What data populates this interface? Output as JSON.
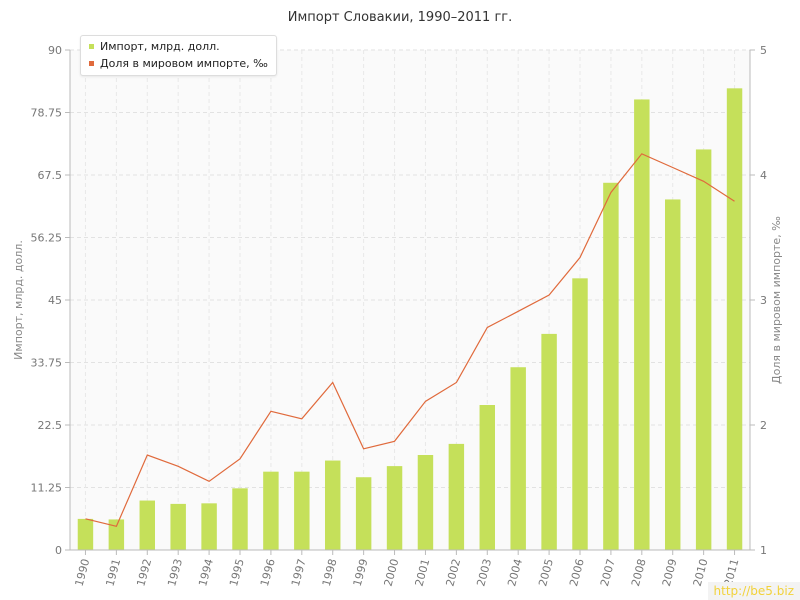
{
  "chart_data": {
    "type": "bar",
    "title": "Импорт Словакии, 1990–2011 гг.",
    "categories": [
      "1990",
      "1991",
      "1992",
      "1993",
      "1994",
      "1995",
      "1996",
      "1997",
      "1998",
      "1999",
      "2000",
      "2001",
      "2002",
      "2003",
      "2004",
      "2005",
      "2006",
      "2007",
      "2008",
      "2009",
      "2010",
      "2011"
    ],
    "series": [
      {
        "name": "Импорт, млрд. долл.",
        "type": "bar",
        "axis": "left",
        "color": "#c5e05a",
        "values": [
          5.6,
          5.5,
          8.9,
          8.3,
          8.4,
          11.1,
          14.1,
          14.1,
          16.1,
          13.1,
          15.1,
          17.1,
          19.1,
          26.1,
          32.9,
          38.9,
          48.9,
          66.1,
          81.1,
          63.1,
          72.1,
          83.1
        ]
      },
      {
        "name": "Доля в мировом импорте, ‰",
        "type": "line",
        "axis": "right",
        "color": "#e06a3c",
        "values": [
          1.25,
          1.19,
          1.76,
          1.67,
          1.55,
          1.73,
          2.11,
          2.05,
          2.34,
          1.81,
          1.87,
          2.19,
          2.34,
          2.78,
          2.91,
          3.04,
          3.34,
          3.86,
          4.17,
          4.06,
          3.95,
          3.79
        ]
      }
    ],
    "ylabel": "Импорт, млрд. долл.",
    "ylabel_right": "Доля в мировом импорте, ‰",
    "ylim": [
      0,
      90
    ],
    "ylim_right": [
      1,
      5
    ],
    "yticks": [
      "0",
      "11.25",
      "22.5",
      "33.75",
      "45",
      "56.25",
      "67.5",
      "78.75",
      "90"
    ],
    "yticks_right": [
      "1",
      "2",
      "3",
      "4",
      "5"
    ],
    "grid": true,
    "legend_position": "top-left"
  },
  "watermark": "http://be5.biz"
}
